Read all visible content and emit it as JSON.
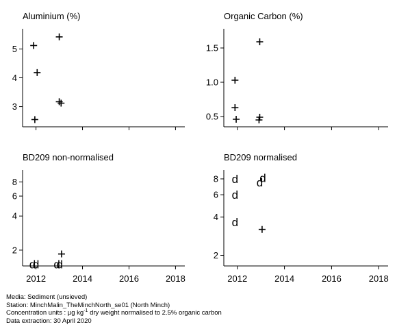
{
  "chart_data": [
    {
      "type": "scatter",
      "title": "Aluminium (%)",
      "xlim": [
        2011.6,
        2018.4
      ],
      "ylim": [
        2.3,
        5.7
      ],
      "xticks": [
        2012,
        2014,
        2016,
        2018
      ],
      "xtick_labels_shown": false,
      "yticks": [
        3,
        4,
        5
      ],
      "series": [
        {
          "marker": "+",
          "points": [
            [
              2011.9,
              5.12
            ],
            [
              2012.05,
              4.18
            ],
            [
              2011.95,
              2.55
            ],
            [
              2013.0,
              5.42
            ],
            [
              2013.0,
              3.17
            ],
            [
              2013.08,
              3.12
            ]
          ]
        }
      ]
    },
    {
      "type": "scatter",
      "title": "Organic Carbon (%)",
      "xlim": [
        2011.6,
        2018.4
      ],
      "ylim": [
        0.35,
        1.78
      ],
      "xticks": [
        2012,
        2014,
        2016,
        2018
      ],
      "xtick_labels_shown": false,
      "yticks": [
        0.5,
        1.0,
        1.5
      ],
      "ytick_labels": [
        "0.5",
        "1.0",
        "1.5"
      ],
      "series": [
        {
          "marker": "+",
          "points": [
            [
              2011.9,
              1.03
            ],
            [
              2011.9,
              0.63
            ],
            [
              2011.95,
              0.46
            ],
            [
              2012.95,
              1.59
            ],
            [
              2012.95,
              0.49
            ],
            [
              2012.92,
              0.45
            ]
          ]
        }
      ]
    },
    {
      "type": "scatter",
      "title": "BD209 non-normalised",
      "log_scale_y": true,
      "xlim": [
        2011.6,
        2018.4
      ],
      "ylim": [
        1.45,
        10.2
      ],
      "xticks": [
        2012,
        2014,
        2016,
        2018
      ],
      "xtick_labels": [
        "2012",
        "2014",
        "2016",
        "2018"
      ],
      "yticks": [
        2,
        4,
        6,
        8
      ],
      "series": [
        {
          "marker": "+",
          "points": [
            [
              2013.1,
              1.85
            ]
          ]
        },
        {
          "marker": "d",
          "points": [
            [
              2011.85,
              1.5
            ],
            [
              2012.0,
              1.5
            ],
            [
              2012.9,
              1.5
            ],
            [
              2013.02,
              1.5
            ]
          ]
        }
      ]
    },
    {
      "type": "scatter",
      "title": "BD209 normalised",
      "log_scale_y": true,
      "xlim": [
        2011.6,
        2018.4
      ],
      "ylim": [
        1.65,
        9.4
      ],
      "xticks": [
        2012,
        2014,
        2016,
        2018
      ],
      "xtick_labels": [
        "2012",
        "2014",
        "2016",
        "2018"
      ],
      "yticks": [
        2,
        4,
        6,
        8
      ],
      "series": [
        {
          "marker": "+",
          "points": [
            [
              2013.05,
              3.2
            ]
          ]
        },
        {
          "marker": "d",
          "points": [
            [
              2011.9,
              8.0
            ],
            [
              2011.9,
              6.0
            ],
            [
              2011.9,
              3.65
            ],
            [
              2012.95,
              7.5
            ],
            [
              2013.08,
              8.15
            ]
          ]
        }
      ]
    }
  ],
  "footer": {
    "line1": "Media: Sediment (unsieved)",
    "line2": "Station: MinchMalin_TheMinchNorth_se01 (North Minch)",
    "line3_prefix": "Concentration units : µg kg",
    "line3_sup": "-1",
    "line3_suffix": " dry weight normalised to 2.5% organic carbon",
    "line4": "Data extraction: 30 April 2020"
  }
}
